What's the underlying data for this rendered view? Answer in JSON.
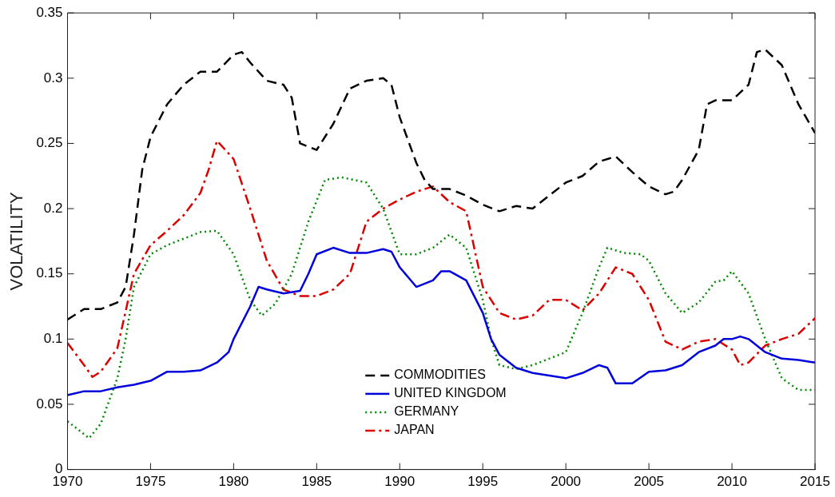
{
  "chart_data": {
    "type": "line",
    "ylabel": "VOLATILITY",
    "xlim": [
      1970,
      2015
    ],
    "xticks": [
      1970,
      1975,
      1980,
      1985,
      1990,
      1995,
      2000,
      2005,
      2010,
      2015
    ],
    "ylim": [
      0,
      0.35
    ],
    "yticks": [
      0,
      0.05,
      0.1,
      0.15,
      0.2,
      0.25,
      0.3,
      0.35
    ],
    "grid": false,
    "legend": "bottom",
    "marker": "none",
    "series": [
      {
        "name": "COMMODITIES",
        "color": "#000000",
        "line_style": "dashed",
        "x": [
          1970,
          1971,
          1972,
          1973,
          1973.5,
          1974,
          1974.5,
          1975,
          1976,
          1977,
          1978,
          1979,
          1980,
          1980.5,
          1981,
          1982,
          1983,
          1983.5,
          1984,
          1985,
          1986,
          1987,
          1988,
          1989,
          1989.5,
          1990,
          1991,
          1991.5,
          1992,
          1993,
          1994,
          1995,
          1996,
          1997,
          1998,
          1999,
          2000,
          2001,
          2002,
          2003,
          2004,
          2005,
          2006,
          2006.5,
          2007,
          2008,
          2008.5,
          2009,
          2010,
          2011,
          2011.5,
          2012,
          2013,
          2014,
          2015
        ],
        "values": [
          0.115,
          0.123,
          0.123,
          0.128,
          0.14,
          0.18,
          0.23,
          0.255,
          0.28,
          0.295,
          0.305,
          0.305,
          0.318,
          0.32,
          0.312,
          0.298,
          0.295,
          0.285,
          0.25,
          0.245,
          0.265,
          0.292,
          0.298,
          0.3,
          0.295,
          0.27,
          0.235,
          0.222,
          0.215,
          0.215,
          0.21,
          0.203,
          0.198,
          0.202,
          0.2,
          0.21,
          0.22,
          0.225,
          0.236,
          0.24,
          0.228,
          0.217,
          0.211,
          0.213,
          0.222,
          0.245,
          0.28,
          0.283,
          0.283,
          0.295,
          0.32,
          0.322,
          0.31,
          0.28,
          0.258
        ]
      },
      {
        "name": "UNITED KINGDOM",
        "color": "#0000dd",
        "line_style": "solid",
        "x": [
          1970,
          1971,
          1972,
          1973,
          1974,
          1975,
          1976,
          1977,
          1978,
          1979,
          1979.7,
          1980,
          1981,
          1981.5,
          1982,
          1983,
          1984,
          1984.5,
          1985,
          1986,
          1987,
          1988,
          1989,
          1989.5,
          1990,
          1991,
          1992,
          1992.5,
          1993,
          1994,
          1995,
          1995.5,
          1996,
          1997,
          1998,
          1999,
          2000,
          2001,
          2002,
          2002.5,
          2003,
          2004,
          2005,
          2006,
          2007,
          2008,
          2009,
          2009.5,
          2010,
          2010.5,
          2011,
          2012,
          2013,
          2014,
          2015
        ],
        "values": [
          0.057,
          0.06,
          0.06,
          0.063,
          0.065,
          0.068,
          0.075,
          0.075,
          0.076,
          0.082,
          0.09,
          0.1,
          0.125,
          0.14,
          0.138,
          0.135,
          0.137,
          0.15,
          0.165,
          0.17,
          0.166,
          0.166,
          0.169,
          0.167,
          0.155,
          0.14,
          0.145,
          0.152,
          0.152,
          0.145,
          0.12,
          0.1,
          0.088,
          0.078,
          0.074,
          0.072,
          0.07,
          0.074,
          0.08,
          0.078,
          0.066,
          0.066,
          0.075,
          0.076,
          0.08,
          0.09,
          0.095,
          0.1,
          0.1,
          0.102,
          0.1,
          0.09,
          0.085,
          0.084,
          0.082
        ]
      },
      {
        "name": "GERMANY",
        "color": "#008800",
        "line_style": "dotted",
        "x": [
          1970,
          1971,
          1971.3,
          1972,
          1973,
          1973.5,
          1974,
          1975,
          1976,
          1977,
          1978,
          1979,
          1980,
          1981,
          1981.7,
          1982.5,
          1983.5,
          1984.5,
          1985.5,
          1986.5,
          1988,
          1989,
          1990,
          1991,
          1992,
          1993,
          1994,
          1995,
          1995.5,
          1996,
          1997,
          1998,
          1999,
          2000,
          2001,
          2002,
          2002.5,
          2003.5,
          2004.5,
          2005,
          2006,
          2007,
          2008,
          2009,
          2009.5,
          2010,
          2011,
          2012,
          2013,
          2014,
          2015
        ],
        "values": [
          0.037,
          0.027,
          0.024,
          0.035,
          0.07,
          0.1,
          0.14,
          0.165,
          0.172,
          0.177,
          0.182,
          0.183,
          0.165,
          0.13,
          0.118,
          0.127,
          0.15,
          0.19,
          0.222,
          0.224,
          0.22,
          0.2,
          0.165,
          0.165,
          0.17,
          0.18,
          0.17,
          0.13,
          0.1,
          0.08,
          0.077,
          0.08,
          0.085,
          0.09,
          0.12,
          0.155,
          0.17,
          0.166,
          0.165,
          0.16,
          0.135,
          0.12,
          0.128,
          0.144,
          0.145,
          0.152,
          0.135,
          0.1,
          0.07,
          0.061,
          0.061
        ]
      },
      {
        "name": "JAPAN",
        "color": "#dd0000",
        "line_style": "dashdot",
        "x": [
          1970,
          1971,
          1971.5,
          1972,
          1973,
          1973.3,
          1974,
          1975,
          1976,
          1977,
          1978,
          1978.5,
          1979,
          1980,
          1981,
          1982,
          1983,
          1984,
          1985,
          1986,
          1987,
          1988,
          1989,
          1990,
          1991,
          1992,
          1993,
          1994,
          1995,
          1996,
          1997,
          1998,
          1999,
          2000,
          2001,
          2002,
          2003,
          2004,
          2005,
          2006,
          2007,
          2008,
          2009,
          2010,
          2010.5,
          2011,
          2012,
          2013,
          2014,
          2015
        ],
        "values": [
          0.097,
          0.08,
          0.071,
          0.075,
          0.093,
          0.11,
          0.15,
          0.172,
          0.183,
          0.195,
          0.212,
          0.23,
          0.252,
          0.238,
          0.2,
          0.16,
          0.138,
          0.133,
          0.133,
          0.138,
          0.15,
          0.19,
          0.2,
          0.207,
          0.213,
          0.217,
          0.205,
          0.198,
          0.14,
          0.12,
          0.115,
          0.118,
          0.13,
          0.13,
          0.122,
          0.135,
          0.155,
          0.15,
          0.13,
          0.098,
          0.092,
          0.098,
          0.1,
          0.092,
          0.08,
          0.082,
          0.095,
          0.1,
          0.104,
          0.116
        ]
      }
    ]
  }
}
